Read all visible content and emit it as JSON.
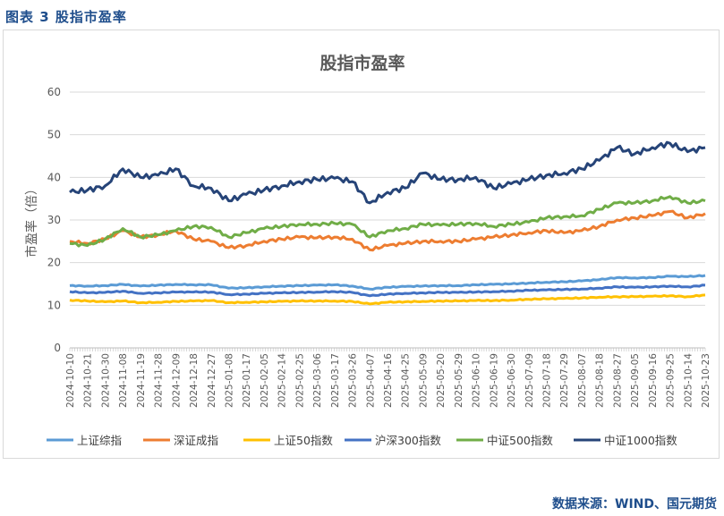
{
  "figure_label": "图表 3  股指市盈率",
  "source_text": "数据来源：WIND、国元期货",
  "colors": {
    "header_text": "#1f4e8c",
    "grid": "#d9d9d9",
    "axis_text": "#595959"
  },
  "chart_data": {
    "type": "line",
    "title": "股指市盈率",
    "xlabel": "",
    "ylabel": "市盈率（倍）",
    "ylim": [
      0,
      60
    ],
    "yticks": [
      0,
      10,
      20,
      30,
      40,
      50,
      60
    ],
    "grid": true,
    "legend_position": "bottom",
    "x": [
      "2024-10-10",
      "2024-10-21",
      "2024-10-30",
      "2024-11-08",
      "2024-11-19",
      "2024-11-28",
      "2024-12-09",
      "2024-12-18",
      "2024-12-27",
      "2025-01-08",
      "2025-01-17",
      "2025-02-05",
      "2025-02-14",
      "2025-02-25",
      "2025-03-06",
      "2025-03-17",
      "2025-03-26",
      "2025-04-07",
      "2025-04-16",
      "2025-04-25",
      "2025-05-09",
      "2025-05-20",
      "2025-05-29",
      "2025-06-10",
      "2025-06-19",
      "2025-06-30",
      "2025-07-09",
      "2025-07-18",
      "2025-07-29",
      "2025-08-07",
      "2025-08-18",
      "2025-08-27",
      "2025-09-05",
      "2025-09-16",
      "2025-09-25",
      "2025-10-14",
      "2025-10-23"
    ],
    "series": [
      {
        "name": "上证综指",
        "color": "#5b9bd5",
        "values": [
          14.6,
          14.5,
          14.6,
          14.9,
          14.5,
          14.7,
          14.9,
          14.8,
          14.8,
          14.0,
          14.1,
          14.3,
          14.5,
          14.6,
          14.7,
          14.8,
          14.5,
          13.8,
          14.2,
          14.4,
          14.5,
          14.6,
          14.6,
          14.8,
          14.9,
          15.0,
          15.2,
          15.4,
          15.5,
          15.7,
          16.0,
          16.5,
          16.4,
          16.5,
          16.8,
          16.7,
          17.0
        ]
      },
      {
        "name": "深证成指",
        "color": "#ed7d31",
        "values": [
          25.0,
          24.5,
          25.5,
          27.5,
          26.0,
          26.5,
          27.5,
          25.5,
          25.0,
          23.5,
          24.0,
          25.0,
          25.5,
          26.0,
          25.8,
          26.0,
          25.5,
          23.0,
          24.0,
          24.5,
          25.0,
          25.0,
          25.0,
          25.5,
          26.0,
          26.5,
          27.0,
          27.5,
          27.0,
          27.5,
          28.5,
          30.0,
          30.5,
          31.0,
          32.0,
          30.5,
          31.5
        ]
      },
      {
        "name": "上证50指数",
        "color": "#ffc000",
        "values": [
          11.2,
          11.0,
          10.8,
          11.0,
          10.6,
          10.7,
          10.9,
          11.0,
          11.1,
          10.6,
          10.7,
          10.8,
          10.9,
          11.0,
          11.0,
          11.0,
          10.9,
          10.3,
          10.7,
          10.8,
          10.9,
          11.0,
          11.0,
          11.1,
          11.1,
          11.2,
          11.4,
          11.5,
          11.6,
          11.7,
          11.9,
          12.0,
          12.0,
          12.1,
          12.2,
          12.0,
          12.4
        ]
      },
      {
        "name": "沪深300指数",
        "color": "#4472c4",
        "values": [
          13.2,
          12.9,
          13.0,
          13.3,
          12.8,
          12.9,
          13.1,
          13.1,
          13.1,
          12.5,
          12.6,
          12.8,
          12.9,
          13.0,
          13.1,
          13.2,
          13.0,
          12.2,
          12.6,
          12.8,
          12.9,
          13.0,
          13.0,
          13.1,
          13.2,
          13.3,
          13.5,
          13.6,
          13.7,
          13.8,
          14.0,
          14.3,
          14.2,
          14.3,
          14.5,
          14.3,
          14.7
        ]
      },
      {
        "name": "中证500指数",
        "color": "#70ad47",
        "values": [
          24.5,
          24.0,
          25.5,
          28.0,
          26.0,
          26.5,
          27.5,
          28.5,
          28.3,
          26.0,
          27.0,
          28.0,
          28.5,
          29.0,
          29.0,
          29.2,
          29.0,
          26.0,
          27.5,
          28.0,
          29.0,
          28.8,
          29.0,
          29.2,
          28.5,
          29.0,
          29.5,
          30.5,
          30.8,
          31.0,
          32.5,
          34.0,
          34.0,
          34.5,
          35.5,
          34.0,
          34.5
        ]
      },
      {
        "name": "中证1000指数",
        "color": "#264478",
        "values": [
          36.5,
          37.0,
          38.0,
          42.0,
          40.0,
          40.5,
          42.0,
          38.0,
          37.5,
          34.5,
          36.0,
          37.0,
          38.0,
          39.0,
          39.5,
          39.8,
          39.0,
          34.0,
          36.5,
          37.5,
          41.0,
          39.5,
          39.5,
          40.0,
          37.5,
          38.5,
          39.5,
          40.5,
          41.0,
          42.0,
          44.0,
          47.0,
          45.5,
          47.0,
          48.0,
          46.0,
          47.0
        ]
      }
    ]
  }
}
